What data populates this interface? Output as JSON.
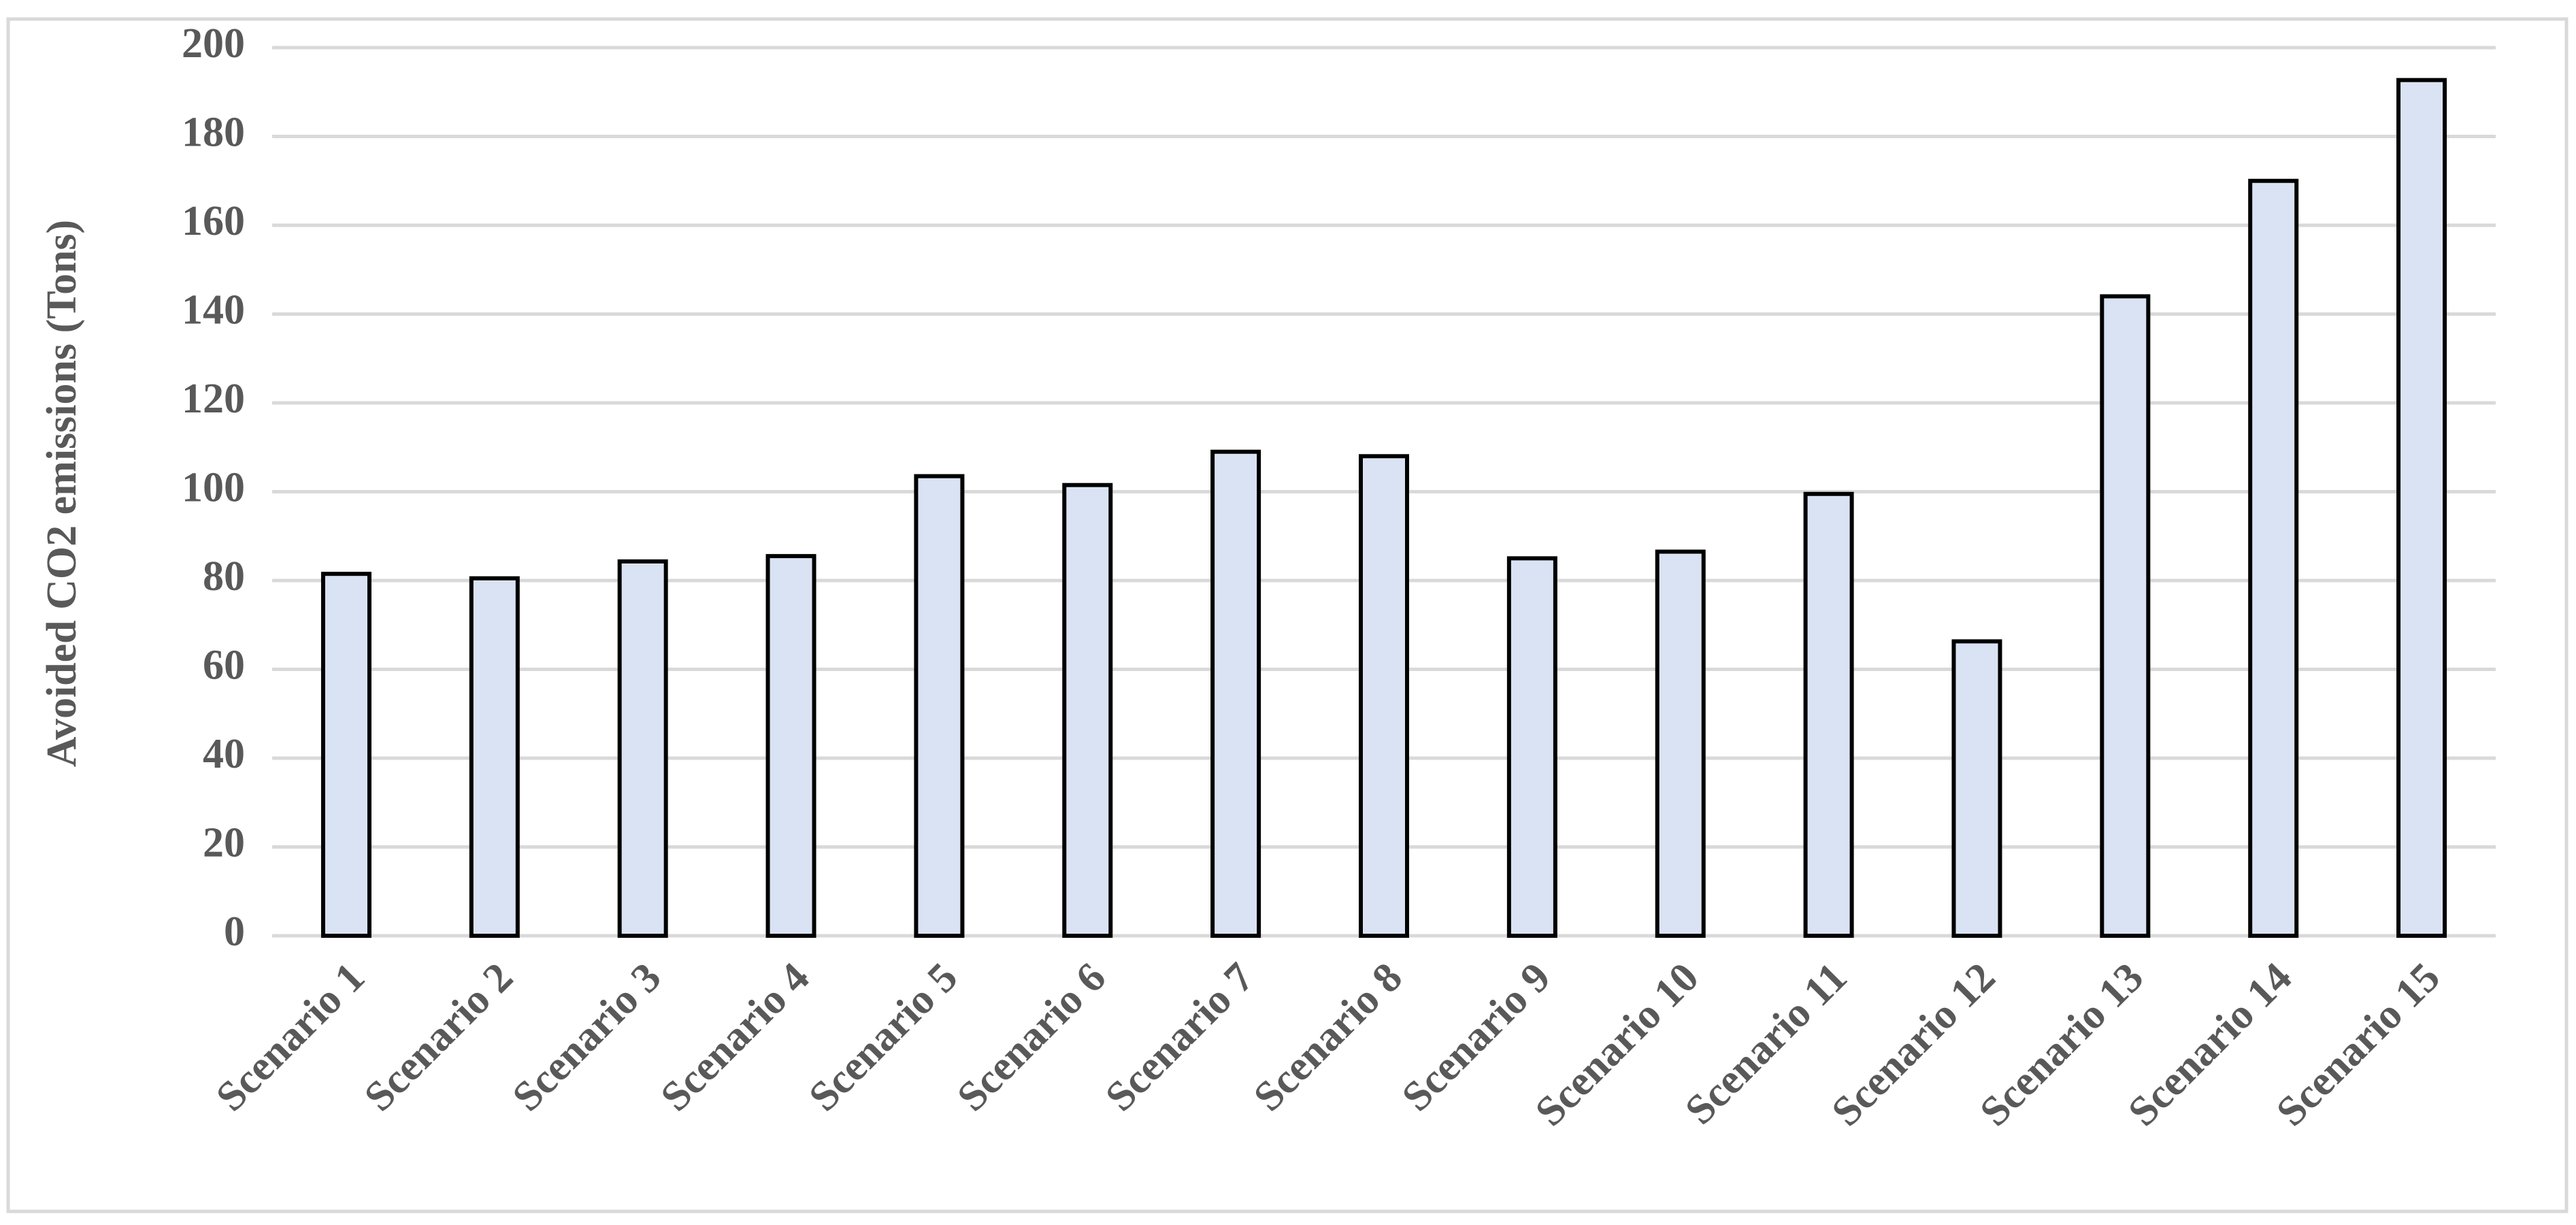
{
  "chart_data": {
    "type": "bar",
    "y_axis_label": "Avoided CO2 emissions (Tons)",
    "categories": [
      "Scenario 1",
      "Scenario 2",
      "Scenario 3",
      "Scenario 4",
      "Scenario 5",
      "Scenario 6",
      "Scenario 7",
      "Scenario 8",
      "Scenario 9",
      "Scenario 10",
      "Scenario 11",
      "Scenario 12",
      "Scenario 13",
      "Scenario 14",
      "Scenario 15"
    ],
    "values": [
      81.5,
      80.5,
      84.3,
      85.5,
      103.5,
      101.5,
      109,
      108,
      85,
      86.5,
      99.5,
      66.3,
      144,
      170,
      192.7
    ],
    "color": "#dae3f3",
    "edge_color": "#000000",
    "ylim": [
      0,
      200
    ],
    "yticks": [
      0,
      20,
      40,
      60,
      80,
      100,
      120,
      140,
      160,
      180,
      200
    ],
    "grid": true
  }
}
